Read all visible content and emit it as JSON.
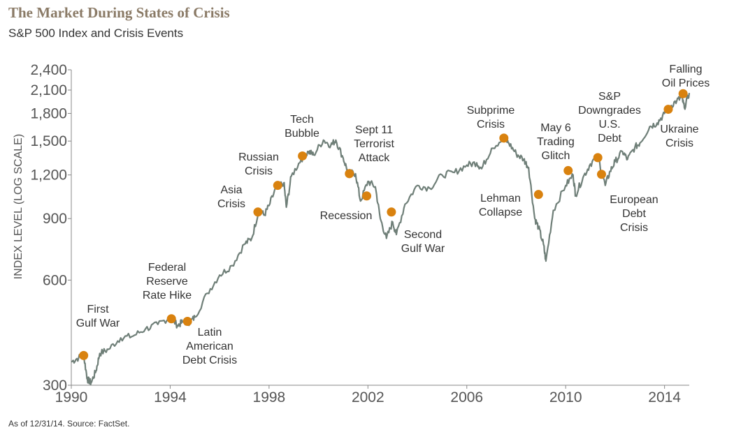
{
  "header": {
    "title": "The Market During States of Crisis",
    "subtitle": "S&P 500 Index and Crisis Events"
  },
  "footer": {
    "source": "As of 12/31/14. Source: FactSet."
  },
  "colors": {
    "line": "#6f7f78",
    "marker": "#d9820f",
    "title": "#8a7a66"
  },
  "chart_data": {
    "type": "line",
    "title": "The Market During States of Crisis",
    "subtitle": "S&P 500 Index and Crisis Events",
    "xlabel": "",
    "ylabel": "INDEX LEVEL (LOG SCALE)",
    "yscale": "log",
    "xlim": [
      1990,
      2014
    ],
    "ylim": [
      300,
      2400
    ],
    "xticks": [
      1990,
      1994,
      1998,
      2002,
      2006,
      2010,
      2014
    ],
    "yticks": [
      300,
      600,
      900,
      1200,
      1500,
      1800,
      2100,
      2400
    ],
    "ytick_labels": [
      "300",
      "600",
      "900",
      "1,200",
      "1,500",
      "1,800",
      "2,100",
      "2,400"
    ],
    "series": [
      {
        "name": "S&P 500 Index",
        "points": [
          [
            1990.0,
            350
          ],
          [
            1990.3,
            360
          ],
          [
            1990.5,
            365
          ],
          [
            1990.65,
            312
          ],
          [
            1990.8,
            305
          ],
          [
            1991.0,
            330
          ],
          [
            1991.15,
            370
          ],
          [
            1991.5,
            380
          ],
          [
            1992.0,
            410
          ],
          [
            1992.5,
            415
          ],
          [
            1993.0,
            435
          ],
          [
            1993.5,
            448
          ],
          [
            1994.0,
            470
          ],
          [
            1994.3,
            445
          ],
          [
            1994.5,
            455
          ],
          [
            1994.8,
            455
          ],
          [
            1995.0,
            470
          ],
          [
            1995.5,
            550
          ],
          [
            1996.0,
            620
          ],
          [
            1996.5,
            660
          ],
          [
            1997.0,
            760
          ],
          [
            1997.3,
            790
          ],
          [
            1997.6,
            960
          ],
          [
            1997.8,
            920
          ],
          [
            1998.0,
            980
          ],
          [
            1998.3,
            1110
          ],
          [
            1998.6,
            1140
          ],
          [
            1998.7,
            970
          ],
          [
            1998.9,
            1190
          ],
          [
            1999.3,
            1330
          ],
          [
            1999.6,
            1400
          ],
          [
            1999.8,
            1370
          ],
          [
            2000.2,
            1510
          ],
          [
            2000.5,
            1460
          ],
          [
            2000.7,
            1510
          ],
          [
            2001.0,
            1340
          ],
          [
            2001.2,
            1220
          ],
          [
            2001.5,
            1210
          ],
          [
            2001.7,
            1010
          ],
          [
            2002.0,
            1150
          ],
          [
            2002.3,
            1110
          ],
          [
            2002.5,
            900
          ],
          [
            2002.75,
            790
          ],
          [
            2003.0,
            880
          ],
          [
            2003.15,
            810
          ],
          [
            2003.5,
            990
          ],
          [
            2004.0,
            1120
          ],
          [
            2004.5,
            1100
          ],
          [
            2005.0,
            1200
          ],
          [
            2005.5,
            1220
          ],
          [
            2006.0,
            1280
          ],
          [
            2006.4,
            1300
          ],
          [
            2006.6,
            1250
          ],
          [
            2007.0,
            1430
          ],
          [
            2007.5,
            1530
          ],
          [
            2007.7,
            1480
          ],
          [
            2008.0,
            1380
          ],
          [
            2008.3,
            1330
          ],
          [
            2008.5,
            1260
          ],
          [
            2008.75,
            900
          ],
          [
            2008.9,
            850
          ],
          [
            2009.1,
            760
          ],
          [
            2009.2,
            680
          ],
          [
            2009.5,
            950
          ],
          [
            2010.0,
            1120
          ],
          [
            2010.3,
            1200
          ],
          [
            2010.4,
            1050
          ],
          [
            2010.7,
            1180
          ],
          [
            2011.0,
            1290
          ],
          [
            2011.3,
            1360
          ],
          [
            2011.6,
            1120
          ],
          [
            2011.8,
            1230
          ],
          [
            2012.0,
            1310
          ],
          [
            2012.3,
            1400
          ],
          [
            2012.5,
            1330
          ],
          [
            2012.8,
            1440
          ],
          [
            2013.0,
            1480
          ],
          [
            2013.4,
            1650
          ],
          [
            2013.7,
            1690
          ],
          [
            2014.0,
            1800
          ],
          [
            2014.2,
            1880
          ],
          [
            2014.5,
            1960
          ],
          [
            2014.7,
            2000
          ],
          [
            2014.8,
            1870
          ],
          [
            2015.0,
            2060
          ]
        ]
      }
    ],
    "events": [
      {
        "label": [
          "First",
          "Gulf War"
        ],
        "x": 1990.5,
        "y": 365
      },
      {
        "label": [
          "Federal",
          "Reserve",
          "Rate Hike"
        ],
        "x": 1994.05,
        "y": 465
      },
      {
        "label": [
          "Latin",
          "American",
          "Debt Crisis"
        ],
        "x": 1994.7,
        "y": 457
      },
      {
        "label": [
          "Asia",
          "Crisis"
        ],
        "x": 1997.55,
        "y": 940
      },
      {
        "label": [
          "Russian",
          "Crisis"
        ],
        "x": 1998.35,
        "y": 1120
      },
      {
        "label": [
          "Tech",
          "Bubble"
        ],
        "x": 1999.35,
        "y": 1360
      },
      {
        "label": [
          "Sept 11",
          "Terrorist",
          "Attack"
        ],
        "x": 2001.25,
        "y": 1210
      },
      {
        "label": [
          "Recession"
        ],
        "x": 2001.95,
        "y": 1045
      },
      {
        "label": [
          "Second",
          "Gulf War"
        ],
        "x": 2002.95,
        "y": 940
      },
      {
        "label": [
          "Subprime",
          "Crisis"
        ],
        "x": 2007.5,
        "y": 1530
      },
      {
        "label": [
          "Lehman",
          "Collapse"
        ],
        "x": 2008.9,
        "y": 1055
      },
      {
        "label": [
          "May 6",
          "Trading",
          "Glitch"
        ],
        "x": 2010.1,
        "y": 1235
      },
      {
        "label": [
          "S&P",
          "Downgrades",
          "U.S.",
          "Debt"
        ],
        "x": 2011.3,
        "y": 1345
      },
      {
        "label": [
          "European",
          "Debt",
          "Crisis"
        ],
        "x": 2011.45,
        "y": 1205
      },
      {
        "label": [
          "Ukraine",
          "Crisis"
        ],
        "x": 2014.15,
        "y": 1850
      },
      {
        "label": [
          "Falling",
          "Oil Prices"
        ],
        "x": 2014.75,
        "y": 2050
      }
    ]
  }
}
